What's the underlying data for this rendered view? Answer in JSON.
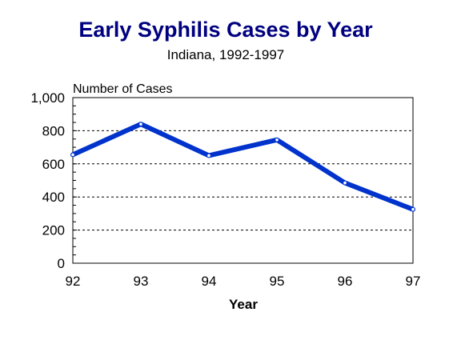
{
  "chart_data": {
    "type": "line",
    "title": "Early Syphilis Cases by Year",
    "subtitle": "Indiana,  1992-1997",
    "xlabel": "Year",
    "ylabel": "Number of Cases",
    "categories": [
      "92",
      "93",
      "94",
      "95",
      "96",
      "97"
    ],
    "series": [
      {
        "values": [
          655,
          840,
          650,
          745,
          485,
          325
        ]
      }
    ],
    "ylim": [
      0,
      1000
    ],
    "yticks": [
      0,
      200,
      400,
      600,
      800,
      1000
    ],
    "ytick_labels": [
      "0",
      "200",
      "400",
      "600",
      "800",
      "1,000"
    ],
    "grid": "horizontal dashed",
    "colors": {
      "title": "#000080",
      "line": "#0033cc",
      "marker": "#ffffff",
      "axis": "#000000",
      "grid": "#000000"
    }
  }
}
